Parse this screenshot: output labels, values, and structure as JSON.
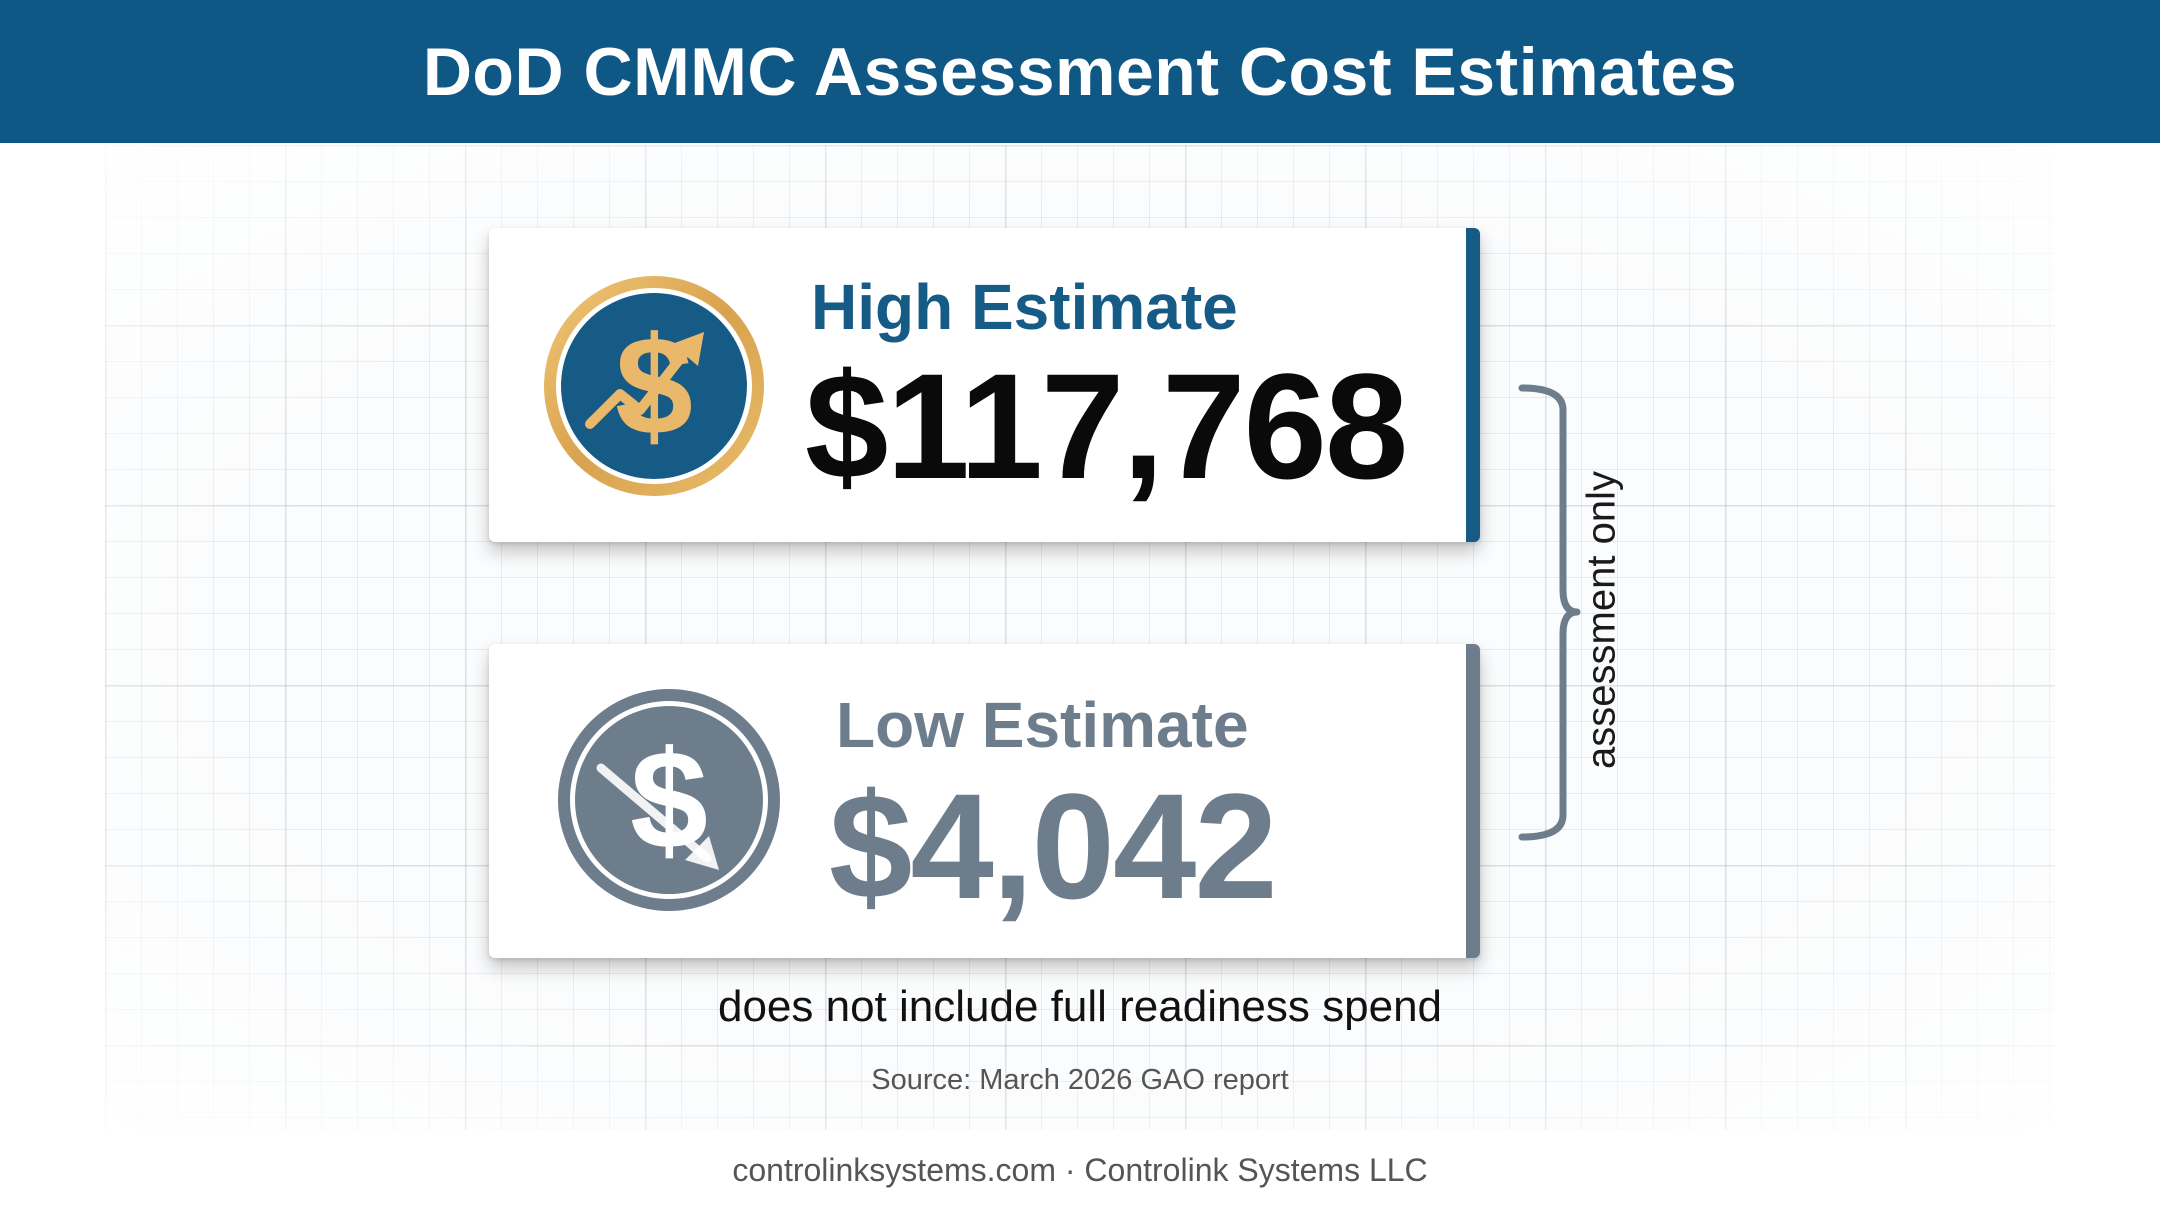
{
  "header": {
    "title": "DoD CMMC Assessment Cost Estimates"
  },
  "high_estimate": {
    "label": "High Estimate",
    "value": "$117,768",
    "icon": "dollar-up-arrow-icon",
    "accent_color": "#165a86"
  },
  "low_estimate": {
    "label": "Low Estimate",
    "value": "$4,042",
    "icon": "dollar-down-arrow-icon",
    "accent_color": "#6e7d8c"
  },
  "bracket": {
    "label": "assessment only"
  },
  "note": "does not include full readiness spend",
  "source": "Source: March 2026 GAO report",
  "footer": "controlinksystems.com · Controlink Systems LLC",
  "colors": {
    "header_bg": "#0f5785",
    "gold_ring": "#d9a95a",
    "gray_icon": "#6e7d8c"
  }
}
